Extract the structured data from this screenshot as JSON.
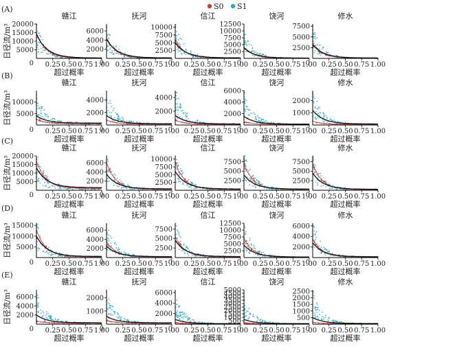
{
  "legend": [
    {
      "name": "S0",
      "color": "#d9372b"
    },
    {
      "name": "S1",
      "color": "#26a9c9"
    }
  ],
  "median_color": "#111111",
  "chart_data": {
    "type": "line",
    "xlabel": "超过概率",
    "ylabel": "日径流/m³",
    "xlim": [
      0,
      1
    ],
    "xticks": [
      "0.25",
      "0.50",
      "0.75",
      "1.00"
    ],
    "x0_label": "0",
    "grid": false,
    "legend_position": "top-center",
    "rows": [
      {
        "label": "(A)",
        "panels": [
          {
            "title": "赣江",
            "ylim": [
              0,
              20000
            ],
            "yticks": [
              5000,
              10000,
              15000,
              20000
            ],
            "s0_peak": 15000,
            "s1_peak": 18000,
            "median_peak": 14000,
            "floor": 200
          },
          {
            "title": "抚河",
            "ylim": [
              0,
              7500
            ],
            "yticks": [
              2000,
              4000,
              6000
            ],
            "s0_peak": 4500,
            "s1_peak": 6500,
            "median_peak": 4200,
            "floor": 100
          },
          {
            "title": "信江",
            "ylim": [
              0,
              11000
            ],
            "yticks": [
              2500,
              5000,
              7500,
              10000
            ],
            "s0_peak": 6000,
            "s1_peak": 10000,
            "median_peak": 5000,
            "floor": 150
          },
          {
            "title": "饶河",
            "ylim": [
              0,
              12500
            ],
            "yticks": [
              2500,
              5000,
              7500,
              10000,
              12500
            ],
            "s0_peak": 4000,
            "s1_peak": 9000,
            "median_peak": 3800,
            "floor": 100
          },
          {
            "title": "修水",
            "ylim": [
              0,
              8000
            ],
            "yticks": [
              2500,
              5000,
              7500
            ],
            "s0_peak": 3500,
            "s1_peak": 6500,
            "median_peak": 3200,
            "floor": 80
          }
        ]
      },
      {
        "label": "(B)",
        "panels": [
          {
            "title": "赣江",
            "ylim": [
              0,
              15000
            ],
            "yticks": [
              5000,
              10000
            ],
            "s0_peak": 2500,
            "s1_peak": 12000,
            "median_peak": 4000,
            "floor": 800
          },
          {
            "title": "抚河",
            "ylim": [
              0,
              5500
            ],
            "yticks": [
              2000,
              4000
            ],
            "s0_peak": 800,
            "s1_peak": 5000,
            "median_peak": 1500,
            "floor": 200
          },
          {
            "title": "信江",
            "ylim": [
              0,
              5000
            ],
            "yticks": [
              2000,
              4000
            ],
            "s0_peak": 700,
            "s1_peak": 4800,
            "median_peak": 1400,
            "floor": 150
          },
          {
            "title": "饶河",
            "ylim": [
              0,
              6000
            ],
            "yticks": [
              2000,
              4000,
              6000
            ],
            "s0_peak": 600,
            "s1_peak": 5500,
            "median_peak": 1500,
            "floor": 150
          },
          {
            "title": "修水",
            "ylim": [
              0,
              2800
            ],
            "yticks": [
              1000,
              2000
            ],
            "s0_peak": 300,
            "s1_peak": 2500,
            "median_peak": 1200,
            "floor": 80
          }
        ]
      },
      {
        "label": "(C)",
        "panels": [
          {
            "title": "赣江",
            "ylim": [
              0,
              20000
            ],
            "yticks": [
              5000,
              10000,
              15000,
              20000
            ],
            "s0_peak": 17000,
            "s1_peak": 19000,
            "median_peak": 13000,
            "floor": 1500
          },
          {
            "title": "抚河",
            "ylim": [
              0,
              7500
            ],
            "yticks": [
              2000,
              4000,
              6000
            ],
            "s0_peak": 6000,
            "s1_peak": 7000,
            "median_peak": 3500,
            "floor": 300
          },
          {
            "title": "信江",
            "ylim": [
              0,
              11000
            ],
            "yticks": [
              2500,
              5000,
              7500,
              10000
            ],
            "s0_peak": 9000,
            "s1_peak": 10500,
            "median_peak": 6000,
            "floor": 400
          },
          {
            "title": "饶河",
            "ylim": [
              0,
              9000
            ],
            "yticks": [
              2500,
              5000,
              7500
            ],
            "s0_peak": 7000,
            "s1_peak": 8500,
            "median_peak": 4000,
            "floor": 300
          },
          {
            "title": "修水",
            "ylim": [
              0,
              9000
            ],
            "yticks": [
              2500,
              5000,
              7500
            ],
            "s0_peak": 7000,
            "s1_peak": 8000,
            "median_peak": 4500,
            "floor": 250
          }
        ]
      },
      {
        "label": "(D)",
        "panels": [
          {
            "title": "赣江",
            "ylim": [
              0,
              16000
            ],
            "yticks": [
              5000,
              10000,
              15000
            ],
            "s0_peak": 13000,
            "s1_peak": 15000,
            "median_peak": 10000,
            "floor": 500
          },
          {
            "title": "抚河",
            "ylim": [
              0,
              7500
            ],
            "yticks": [
              2000,
              4000,
              6000
            ],
            "s0_peak": 3500,
            "s1_peak": 6500,
            "median_peak": 2500,
            "floor": 200
          },
          {
            "title": "信江",
            "ylim": [
              0,
              9000
            ],
            "yticks": [
              2500,
              5000,
              7500
            ],
            "s0_peak": 5500,
            "s1_peak": 8000,
            "median_peak": 4500,
            "floor": 250
          },
          {
            "title": "饶河",
            "ylim": [
              0,
              12500
            ],
            "yticks": [
              2500,
              5000,
              7500,
              10000,
              12500
            ],
            "s0_peak": 7000,
            "s1_peak": 11000,
            "median_peak": 4500,
            "floor": 200
          },
          {
            "title": "修水",
            "ylim": [
              0,
              6500
            ],
            "yticks": [
              2000,
              4000,
              6000
            ],
            "s0_peak": 3500,
            "s1_peak": 6000,
            "median_peak": 2800,
            "floor": 150
          }
        ]
      },
      {
        "label": "(E)",
        "panels": [
          {
            "title": "赣江",
            "ylim": [
              0,
              7500
            ],
            "yticks": [
              2000,
              4000,
              6000
            ],
            "s0_peak": 700,
            "s1_peak": 6500,
            "median_peak": 2000,
            "floor": 300
          },
          {
            "title": "抚河",
            "ylim": [
              0,
              2600
            ],
            "yticks": [
              1000,
              2000
            ],
            "s0_peak": 300,
            "s1_peak": 2200,
            "median_peak": 600,
            "floor": 100
          },
          {
            "title": "信江",
            "ylim": [
              0,
              6500
            ],
            "yticks": [
              2000,
              4000,
              6000
            ],
            "s0_peak": 300,
            "s1_peak": 4500,
            "median_peak": 900,
            "floor": 100
          },
          {
            "title": "饶河",
            "ylim": [
              0,
              5000
            ],
            "yticks": [
              500,
              1000,
              1500,
              2000,
              2500,
              3000,
              3500,
              4000,
              4500,
              5000
            ],
            "s0_peak": 200,
            "s1_peak": 3500,
            "median_peak": 700,
            "floor": 80
          },
          {
            "title": "修水",
            "ylim": [
              0,
              2600
            ],
            "yticks": [
              500,
              1000,
              1500,
              2000,
              2500
            ],
            "s0_peak": 150,
            "s1_peak": 2200,
            "median_peak": 500,
            "floor": 50
          }
        ]
      }
    ]
  }
}
